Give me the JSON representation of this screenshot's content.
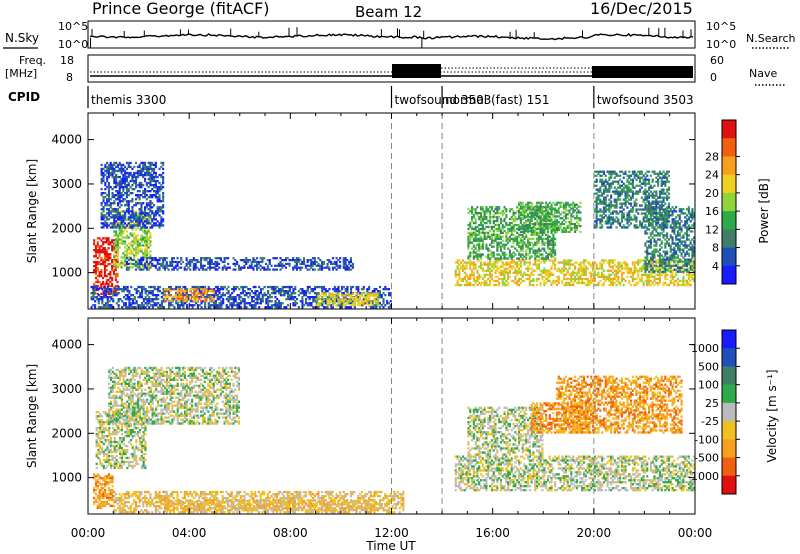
{
  "header": {
    "station": "Prince George (fitACF)",
    "beam": "Beam 12",
    "date": "16/Dec/2015"
  },
  "noise_panel": {
    "left_label": "N.Sky",
    "right_label": "N.Search",
    "ticks_left": [
      "10^5",
      "10^0"
    ],
    "ticks_right": [
      "10^5",
      "10^0"
    ]
  },
  "freq_panel": {
    "left_label_1": "Freq.",
    "left_label_2": "[MHz]",
    "ticks_left": [
      "18",
      "8"
    ],
    "right_label": "Nave",
    "ticks_right": [
      "60",
      "0"
    ]
  },
  "cpid_panel": {
    "label": "CPID",
    "modes": [
      {
        "name": "themis 3300",
        "start_hour": 0
      },
      {
        "name": "twofsound 3503",
        "start_hour": 12
      },
      {
        "name": "normal (fast) 151",
        "start_hour": 14
      },
      {
        "name": "twofsound 3503",
        "start_hour": 20
      }
    ]
  },
  "chart_data": [
    {
      "type": "heatmap",
      "name": "Power",
      "xlabel": "",
      "ylabel": "Slant Range [km]",
      "xlim_hours": [
        0,
        24
      ],
      "ylim_km": [
        180,
        4600
      ],
      "yticks": [
        1000,
        2000,
        3000,
        4000
      ],
      "colorbar": {
        "label": "Power [dB]",
        "ticks": [
          "4",
          "8",
          "12",
          "16",
          "20",
          "24",
          "28"
        ],
        "colors": [
          "#1a1aff",
          "#1f4fb8",
          "#3f7f66",
          "#2faa4a",
          "#8fd43a",
          "#f0d020",
          "#f7a020",
          "#f06010",
          "#e01010"
        ]
      },
      "regions": [
        {
          "x": [
            0.2,
            1.2
          ],
          "y": [
            500,
            1800
          ],
          "level": 8
        },
        {
          "x": [
            1.0,
            2.5
          ],
          "y": [
            1100,
            2400
          ],
          "level": 4
        },
        {
          "x": [
            0.5,
            3.0
          ],
          "y": [
            2000,
            3500
          ],
          "level": 1
        },
        {
          "x": [
            0.1,
            12
          ],
          "y": [
            200,
            700
          ],
          "level": 1
        },
        {
          "x": [
            3.0,
            5.0
          ],
          "y": [
            350,
            650
          ],
          "level": 6
        },
        {
          "x": [
            9.0,
            11.5
          ],
          "y": [
            250,
            550
          ],
          "level": 5
        },
        {
          "x": [
            14.5,
            24
          ],
          "y": [
            700,
            1300
          ],
          "level": 5
        },
        {
          "x": [
            15.0,
            18.5
          ],
          "y": [
            1300,
            2500
          ],
          "level": 3
        },
        {
          "x": [
            17.0,
            19.5
          ],
          "y": [
            1900,
            2600
          ],
          "level": 3
        },
        {
          "x": [
            20.0,
            23.0
          ],
          "y": [
            2000,
            3300
          ],
          "level": 2
        },
        {
          "x": [
            22.0,
            24
          ],
          "y": [
            1000,
            2500
          ],
          "level": 2
        },
        {
          "x": [
            1.5,
            10.5
          ],
          "y": [
            1050,
            1350
          ],
          "level": 1
        }
      ]
    },
    {
      "type": "heatmap",
      "name": "Velocity",
      "xlabel": "Time UT",
      "ylabel": "Slant Range [km]",
      "xlim_hours": [
        0,
        24
      ],
      "xticks": [
        "00:00",
        "04:00",
        "08:00",
        "12:00",
        "16:00",
        "20:00",
        "00:00"
      ],
      "ylim_km": [
        180,
        4600
      ],
      "yticks": [
        1000,
        2000,
        3000,
        4000
      ],
      "colorbar": {
        "label": "Velocity [m s⁻¹]",
        "ticks": [
          "1000",
          "500",
          "100",
          "25",
          "-25",
          "-100",
          "-500",
          "-1000"
        ],
        "colors": [
          "#1a1aff",
          "#1f4fb8",
          "#3f7f66",
          "#2faa4a",
          "#bbbbbb",
          "#f0c020",
          "#f7a020",
          "#f06010",
          "#e01010"
        ]
      },
      "regions": [
        {
          "x": [
            0.2,
            1.0
          ],
          "y": [
            300,
            1100
          ],
          "level": 6
        },
        {
          "x": [
            0.3,
            2.3
          ],
          "y": [
            1200,
            2500
          ],
          "level": 4
        },
        {
          "x": [
            1.0,
            12.5
          ],
          "y": [
            200,
            700
          ],
          "level": 5
        },
        {
          "x": [
            3.0,
            11.5
          ],
          "y": [
            250,
            500
          ],
          "level": 5
        },
        {
          "x": [
            14.5,
            24
          ],
          "y": [
            700,
            1500
          ],
          "level": 4
        },
        {
          "x": [
            15.0,
            18.0
          ],
          "y": [
            1500,
            2600
          ],
          "level": 4
        },
        {
          "x": [
            17.5,
            20.0
          ],
          "y": [
            2000,
            2700
          ],
          "level": 6
        },
        {
          "x": [
            18.5,
            23.5
          ],
          "y": [
            2000,
            3300
          ],
          "level": 6
        },
        {
          "x": [
            0.8,
            6.0
          ],
          "y": [
            2200,
            3500
          ],
          "level": 4
        }
      ]
    }
  ]
}
